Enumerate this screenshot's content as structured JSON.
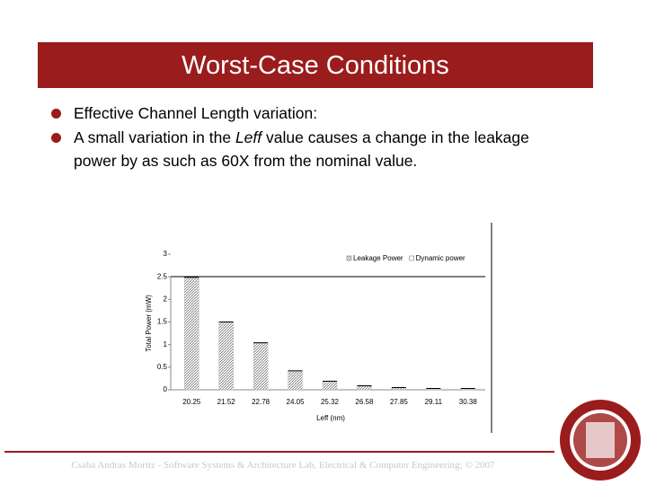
{
  "slide": {
    "title": "Worst-Case Conditions",
    "bullets": [
      [
        "Effective Channel Length variation:"
      ],
      [
        "A small variation in the ",
        "Leff",
        " value causes a change in the leakage power by as such as 60X from the nominal value."
      ]
    ],
    "footer": "Csaba Andras Moritz - Software Systems & Architecture Lab, Electrical & Computer Engineering; © 2007"
  },
  "chart_data": {
    "type": "bar",
    "stacked": true,
    "categories": [
      "20.25",
      "21.52",
      "22.78",
      "24.05",
      "25.32",
      "26.58",
      "27.85",
      "29.11",
      "30.38"
    ],
    "series": [
      {
        "name": "Leakage Power",
        "color": "#bdbdbd",
        "values": [
          2.48,
          1.49,
          1.03,
          0.41,
          0.18,
          0.08,
          0.04,
          0.02,
          0.02
        ]
      },
      {
        "name": "Dynamic power",
        "color": "#000000",
        "values": [
          0.02,
          0.02,
          0.02,
          0.02,
          0.02,
          0.02,
          0.02,
          0.02,
          0.02
        ]
      }
    ],
    "y_label": "Total Power (mW)",
    "x_label": "Leff (nm)",
    "ylim": [
      0,
      3
    ],
    "yticks": [
      0,
      0.5,
      1,
      1.5,
      2,
      2.5,
      3
    ],
    "grid": false,
    "legend": "top-right"
  }
}
